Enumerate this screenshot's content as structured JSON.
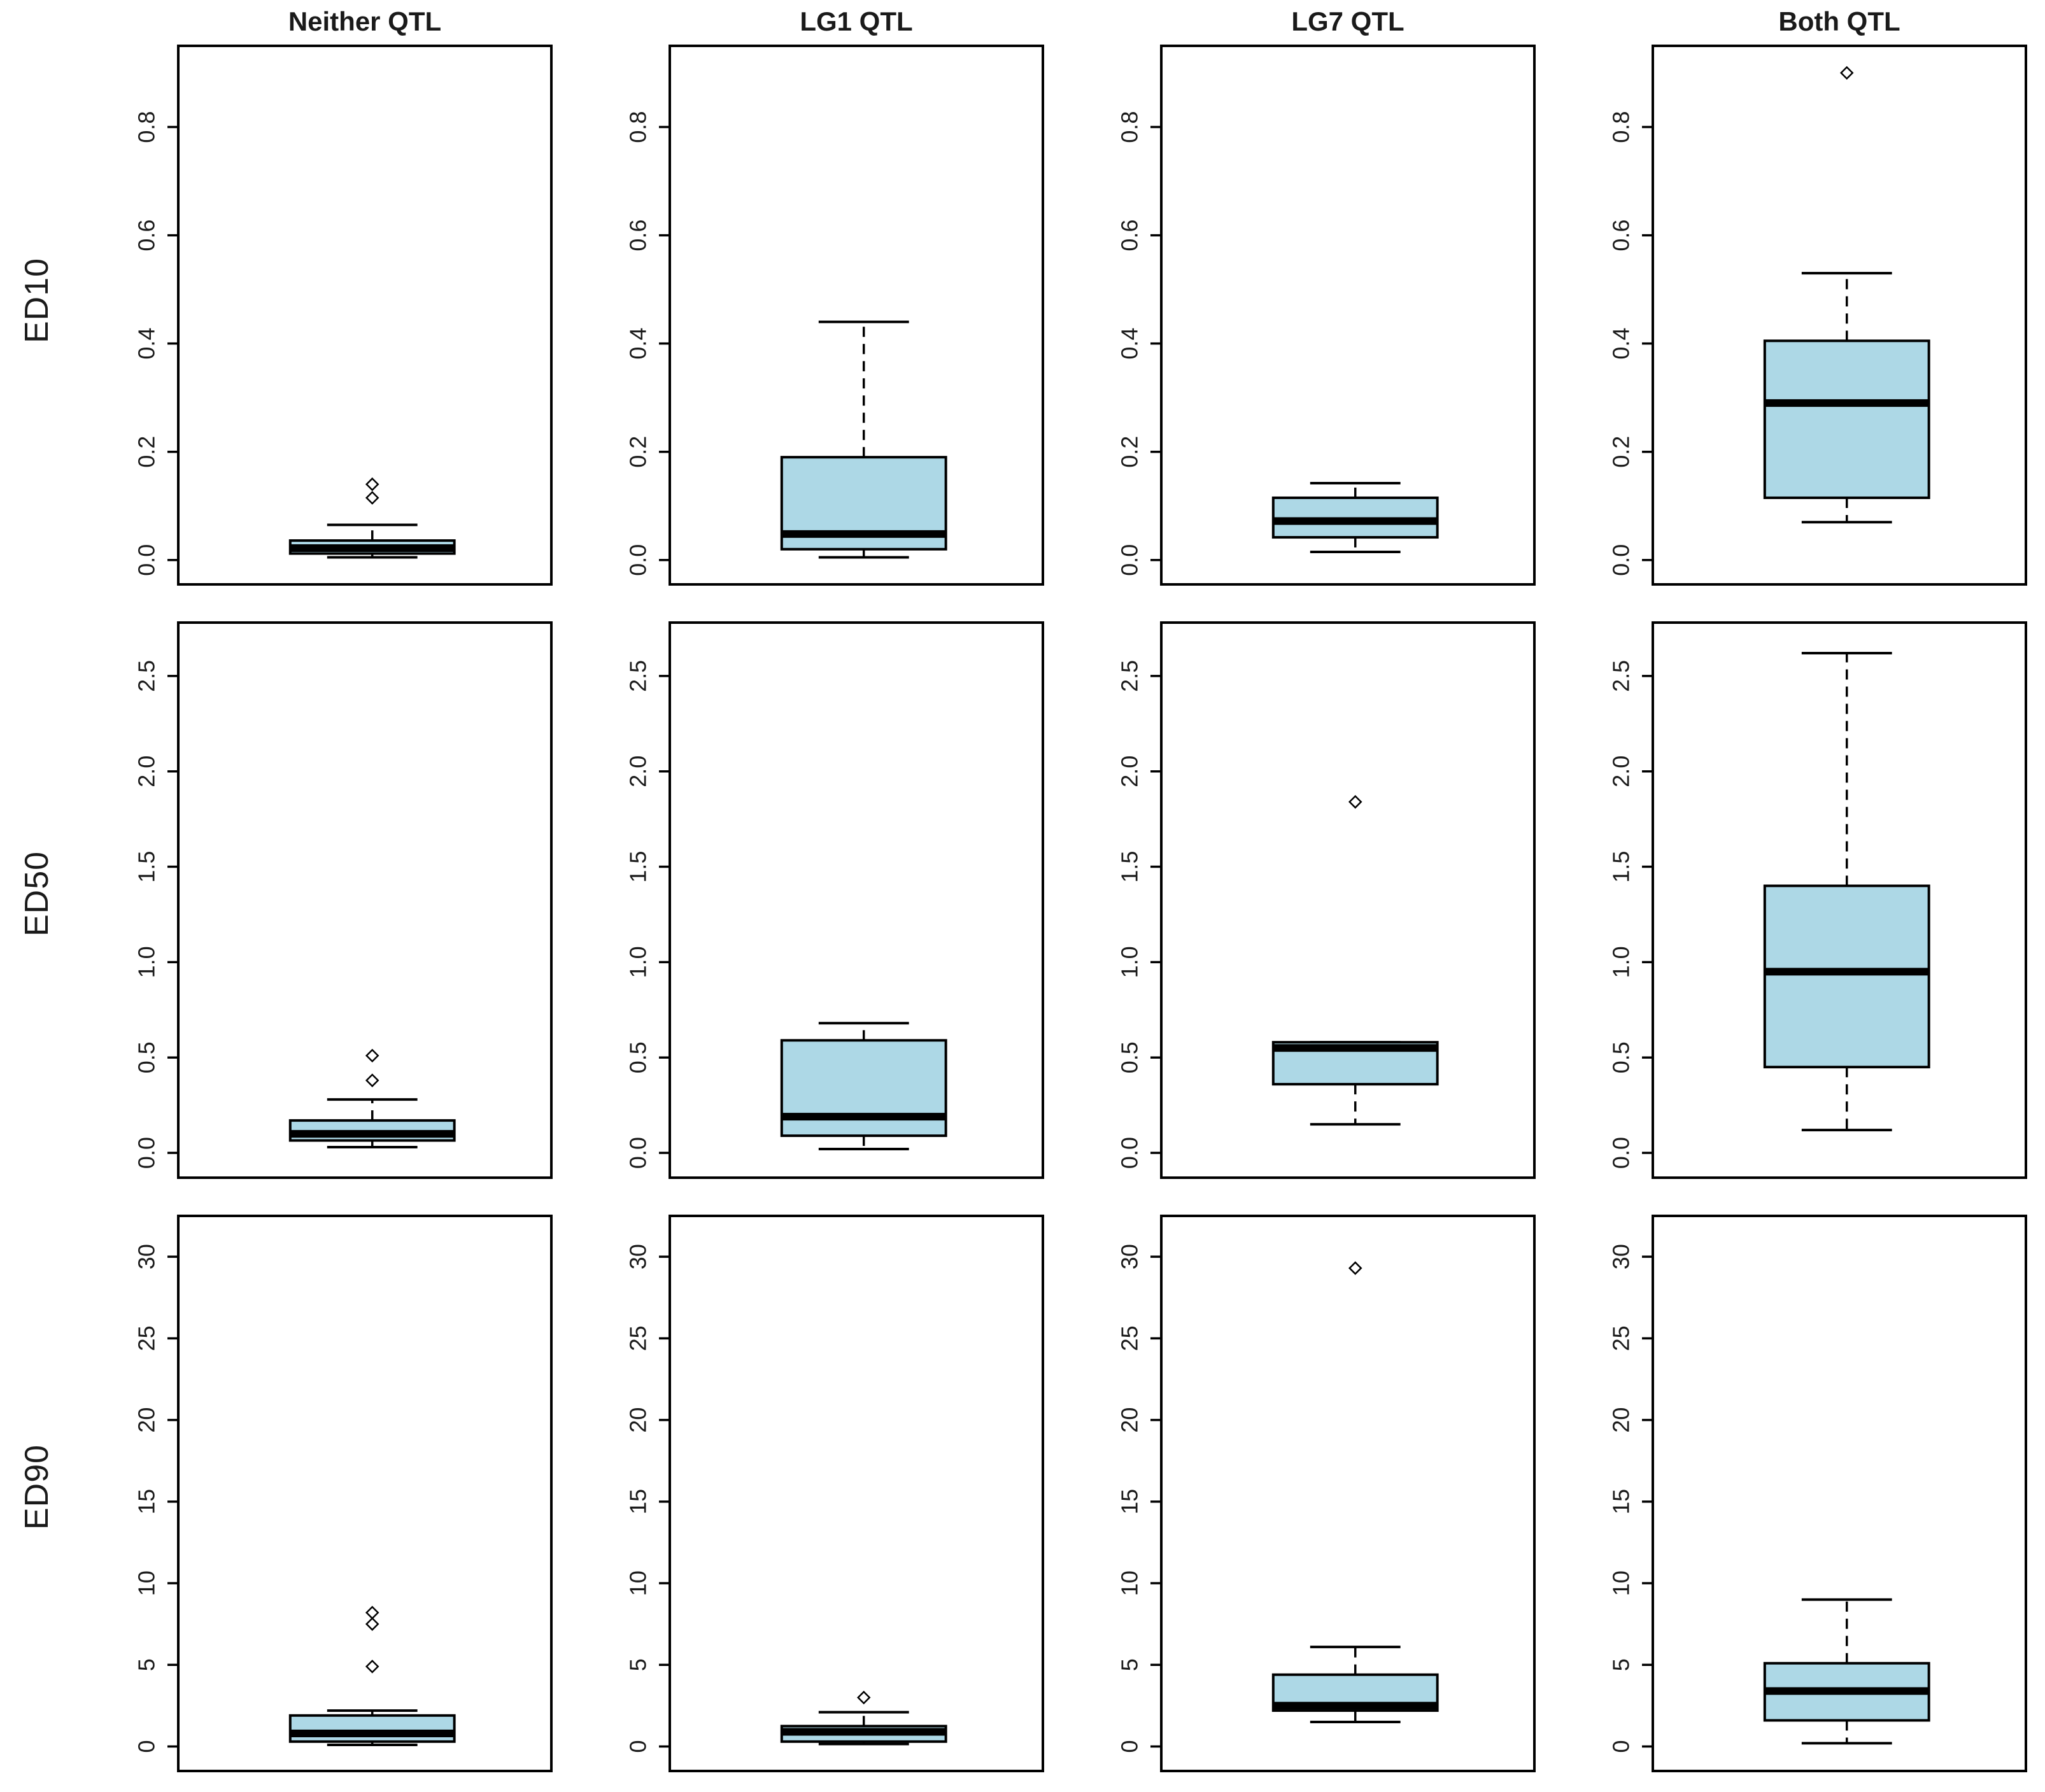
{
  "figure": {
    "columns": [
      "Neither QTL",
      "LG1 QTL",
      "LG7 QTL",
      "Both QTL"
    ],
    "rows": [
      "ED10",
      "ED50",
      "ED90"
    ],
    "box_fill": "#ADD8E6",
    "box_stroke": "#000000",
    "background": "#ffffff",
    "outlier_marker": "open-diamond",
    "whisker_style": "dashed"
  },
  "chart_data": [
    {
      "type": "boxplot",
      "ylabel": "ED10",
      "categories": [
        "Neither QTL",
        "LG1 QTL",
        "LG7 QTL",
        "Both QTL"
      ],
      "yticks": [
        0.0,
        0.2,
        0.4,
        0.6,
        0.8
      ],
      "ytick_labels": [
        "0.0",
        "0.2",
        "0.4",
        "0.6",
        "0.8"
      ],
      "ylim": [
        -0.045,
        0.95
      ],
      "show_titles": true,
      "boxes": [
        {
          "group": "Neither QTL",
          "whisker_low": 0.005,
          "q1": 0.012,
          "median": 0.022,
          "q3": 0.036,
          "whisker_high": 0.065,
          "outliers": [
            0.115,
            0.14
          ]
        },
        {
          "group": "LG1 QTL",
          "whisker_low": 0.005,
          "q1": 0.02,
          "median": 0.048,
          "q3": 0.19,
          "whisker_high": 0.44,
          "outliers": []
        },
        {
          "group": "LG7 QTL",
          "whisker_low": 0.015,
          "q1": 0.042,
          "median": 0.072,
          "q3": 0.115,
          "whisker_high": 0.142,
          "outliers": []
        },
        {
          "group": "Both QTL",
          "whisker_low": 0.07,
          "q1": 0.115,
          "median": 0.29,
          "q3": 0.405,
          "whisker_high": 0.53,
          "outliers": [
            0.9
          ]
        }
      ]
    },
    {
      "type": "boxplot",
      "ylabel": "ED50",
      "categories": [
        "Neither QTL",
        "LG1 QTL",
        "LG7 QTL",
        "Both QTL"
      ],
      "yticks": [
        0.0,
        0.5,
        1.0,
        1.5,
        2.0,
        2.5
      ],
      "ytick_labels": [
        "0.0",
        "0.5",
        "1.0",
        "1.5",
        "2.0",
        "2.5"
      ],
      "ylim": [
        -0.13,
        2.78
      ],
      "show_titles": false,
      "boxes": [
        {
          "group": "Neither QTL",
          "whisker_low": 0.03,
          "q1": 0.065,
          "median": 0.1,
          "q3": 0.17,
          "whisker_high": 0.28,
          "outliers": [
            0.38,
            0.51
          ]
        },
        {
          "group": "LG1 QTL",
          "whisker_low": 0.02,
          "q1": 0.09,
          "median": 0.19,
          "q3": 0.59,
          "whisker_high": 0.68,
          "outliers": []
        },
        {
          "group": "LG7 QTL",
          "whisker_low": 0.15,
          "q1": 0.36,
          "median": 0.55,
          "q3": 0.58,
          "whisker_high": 0.58,
          "outliers": [
            1.84
          ]
        },
        {
          "group": "Both QTL",
          "whisker_low": 0.12,
          "q1": 0.45,
          "median": 0.95,
          "q3": 1.4,
          "whisker_high": 2.62,
          "outliers": []
        }
      ]
    },
    {
      "type": "boxplot",
      "ylabel": "ED90",
      "categories": [
        "Neither QTL",
        "LG1 QTL",
        "LG7 QTL",
        "Both QTL"
      ],
      "yticks": [
        0,
        5,
        10,
        15,
        20,
        25,
        30
      ],
      "ytick_labels": [
        "0",
        "5",
        "10",
        "15",
        "20",
        "25",
        "30"
      ],
      "ylim": [
        -1.5,
        32.5
      ],
      "show_titles": false,
      "boxes": [
        {
          "group": "Neither QTL",
          "whisker_low": 0.1,
          "q1": 0.3,
          "median": 0.8,
          "q3": 1.9,
          "whisker_high": 2.2,
          "outliers": [
            4.9,
            7.5,
            8.2
          ]
        },
        {
          "group": "LG1 QTL",
          "whisker_low": 0.15,
          "q1": 0.3,
          "median": 0.9,
          "q3": 1.25,
          "whisker_high": 2.1,
          "outliers": [
            3.0
          ]
        },
        {
          "group": "LG7 QTL",
          "whisker_low": 1.5,
          "q1": 2.2,
          "median": 2.5,
          "q3": 4.4,
          "whisker_high": 6.1,
          "outliers": [
            29.3
          ]
        },
        {
          "group": "Both QTL",
          "whisker_low": 0.2,
          "q1": 1.6,
          "median": 3.4,
          "q3": 5.1,
          "whisker_high": 9.0,
          "outliers": []
        }
      ]
    }
  ]
}
